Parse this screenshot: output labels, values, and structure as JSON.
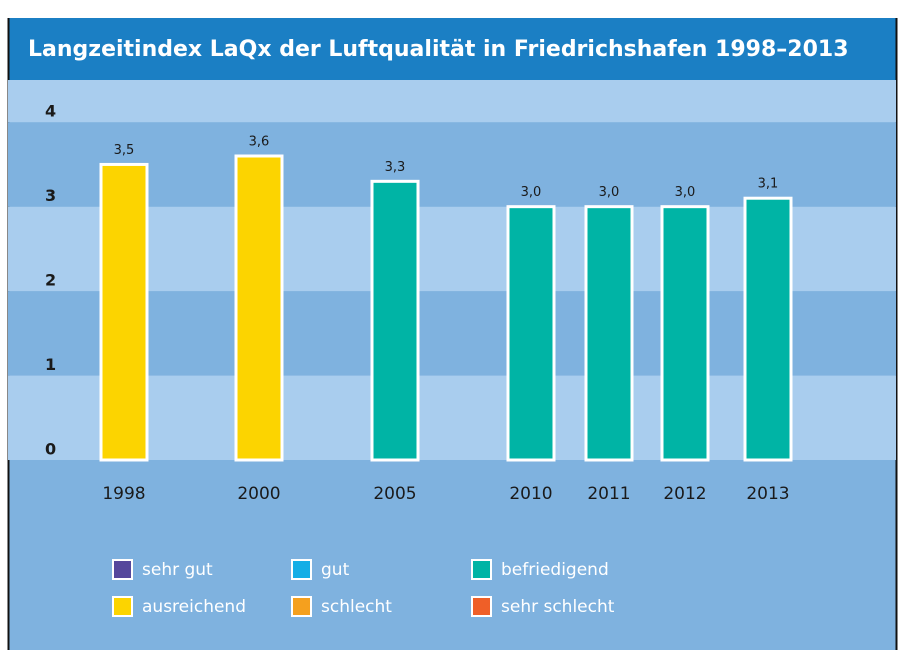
{
  "chart_data": {
    "type": "bar",
    "title": "Langzeitindex LaQx der Luftqualität in Friedrichshafen 1998–2013",
    "categories": [
      "1998",
      "2000",
      "2005",
      "2010",
      "2011",
      "2012",
      "2013"
    ],
    "values": [
      3.5,
      3.6,
      3.3,
      3.0,
      3.0,
      3.0,
      3.1
    ],
    "value_labels": [
      "3,5",
      "3,6",
      "3,3",
      "3,0",
      "3,0",
      "3,0",
      "3,1"
    ],
    "colors": [
      "#fcd400",
      "#fcd400",
      "#00b4a5",
      "#00b4a5",
      "#00b4a5",
      "#00b4a5",
      "#00b4a5"
    ],
    "ylim": [
      0,
      4.5
    ],
    "yticks": [
      0,
      1,
      2,
      3,
      4
    ],
    "grid": true,
    "legend": [
      {
        "name": "sehr gut",
        "color": "#55479c"
      },
      {
        "name": "gut",
        "color": "#14aee6"
      },
      {
        "name": "befriedigend",
        "color": "#00b4a5"
      },
      {
        "name": "ausreichend",
        "color": "#fcd400"
      },
      {
        "name": "schlecht",
        "color": "#f5a01e"
      },
      {
        "name": "sehr schlecht",
        "color": "#ef5f28"
      }
    ]
  }
}
